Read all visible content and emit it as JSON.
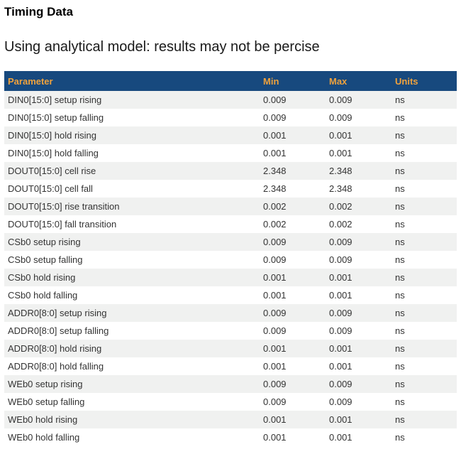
{
  "page": {
    "title": "Timing Data",
    "subtitle": "Using analytical model: results may not be percise"
  },
  "table": {
    "columns": [
      "Parameter",
      "Min",
      "Max",
      "Units"
    ],
    "rows": [
      {
        "parameter": "DIN0[15:0] setup rising",
        "min": "0.009",
        "max": "0.009",
        "units": "ns"
      },
      {
        "parameter": "DIN0[15:0] setup falling",
        "min": "0.009",
        "max": "0.009",
        "units": "ns"
      },
      {
        "parameter": "DIN0[15:0] hold rising",
        "min": "0.001",
        "max": "0.001",
        "units": "ns"
      },
      {
        "parameter": "DIN0[15:0] hold falling",
        "min": "0.001",
        "max": "0.001",
        "units": "ns"
      },
      {
        "parameter": "DOUT0[15:0] cell rise",
        "min": "2.348",
        "max": "2.348",
        "units": "ns"
      },
      {
        "parameter": "DOUT0[15:0] cell fall",
        "min": "2.348",
        "max": "2.348",
        "units": "ns"
      },
      {
        "parameter": "DOUT0[15:0] rise transition",
        "min": "0.002",
        "max": "0.002",
        "units": "ns"
      },
      {
        "parameter": "DOUT0[15:0] fall transition",
        "min": "0.002",
        "max": "0.002",
        "units": "ns"
      },
      {
        "parameter": "CSb0 setup rising",
        "min": "0.009",
        "max": "0.009",
        "units": "ns"
      },
      {
        "parameter": "CSb0 setup falling",
        "min": "0.009",
        "max": "0.009",
        "units": "ns"
      },
      {
        "parameter": "CSb0 hold rising",
        "min": "0.001",
        "max": "0.001",
        "units": "ns"
      },
      {
        "parameter": "CSb0 hold falling",
        "min": "0.001",
        "max": "0.001",
        "units": "ns"
      },
      {
        "parameter": "ADDR0[8:0] setup rising",
        "min": "0.009",
        "max": "0.009",
        "units": "ns"
      },
      {
        "parameter": "ADDR0[8:0] setup falling",
        "min": "0.009",
        "max": "0.009",
        "units": "ns"
      },
      {
        "parameter": "ADDR0[8:0] hold rising",
        "min": "0.001",
        "max": "0.001",
        "units": "ns"
      },
      {
        "parameter": "ADDR0[8:0] hold falling",
        "min": "0.001",
        "max": "0.001",
        "units": "ns"
      },
      {
        "parameter": "WEb0 setup rising",
        "min": "0.009",
        "max": "0.009",
        "units": "ns"
      },
      {
        "parameter": "WEb0 setup falling",
        "min": "0.009",
        "max": "0.009",
        "units": "ns"
      },
      {
        "parameter": "WEb0 hold rising",
        "min": "0.001",
        "max": "0.001",
        "units": "ns"
      },
      {
        "parameter": "WEb0 hold falling",
        "min": "0.001",
        "max": "0.001",
        "units": "ns"
      }
    ]
  },
  "colors": {
    "header_bg": "#17497E",
    "header_text": "#EFA23D",
    "row_alt_bg": "#F0F1F0",
    "row_text": "#333333"
  }
}
